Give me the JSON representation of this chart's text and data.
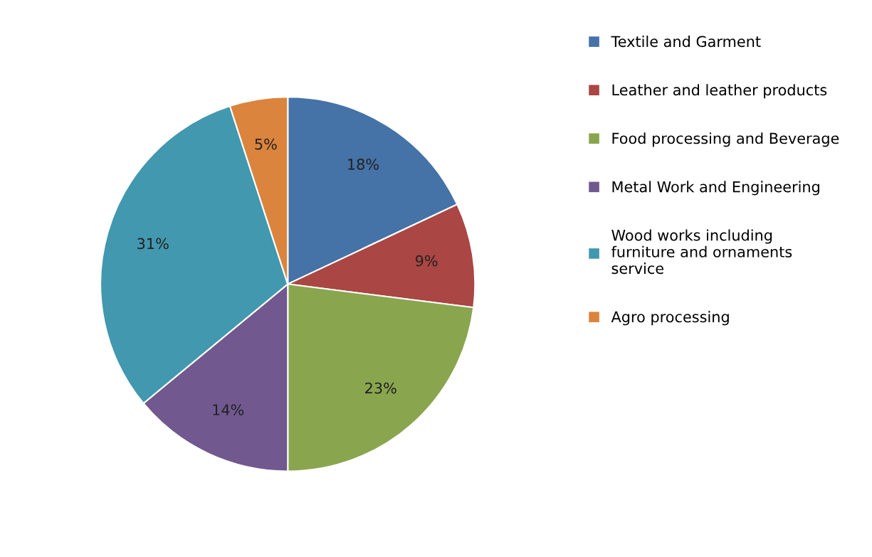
{
  "chart_data": {
    "type": "pie",
    "categories": [
      "Textile and Garment",
      "Leather and leather products",
      "Food processing and Beverage",
      "Metal Work and Engineering",
      "Wood works including\nfurniture and ornaments\nservice",
      "Agro processing"
    ],
    "values": [
      18,
      9,
      23,
      14,
      31,
      5
    ],
    "colors": [
      "#4572a7",
      "#aa4643",
      "#89a54e",
      "#71588f",
      "#4198af",
      "#db843d"
    ],
    "value_labels": [
      "18%",
      "9%",
      "23%",
      "14%",
      "31%",
      "5%"
    ],
    "legend": "right"
  }
}
